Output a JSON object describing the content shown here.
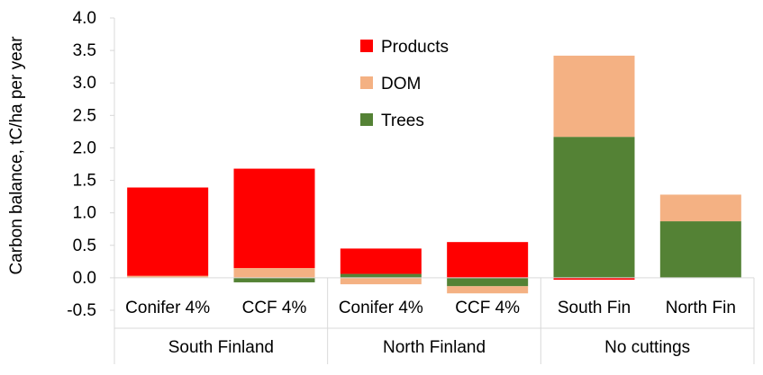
{
  "chart_data": {
    "type": "bar",
    "stacked": true,
    "title": "",
    "xlabel": "",
    "ylabel": "Carbon balance, tC/ha per year",
    "ylim": [
      -0.5,
      4.0
    ],
    "ytick_step": 0.5,
    "grid": false,
    "legend_position": "top-center",
    "categories": [
      "Conifer 4%",
      "CCF 4%",
      "Conifer 4%",
      "CCF 4%",
      "South Fin",
      "North Fin"
    ],
    "groups": [
      {
        "label": "South Finland",
        "start": 0,
        "count": 2
      },
      {
        "label": "North Finland",
        "start": 2,
        "count": 2
      },
      {
        "label": "No cuttings",
        "start": 4,
        "count": 2
      }
    ],
    "series": [
      {
        "name": "Trees",
        "color": "#548235",
        "values": [
          0.0,
          -0.07,
          0.06,
          -0.13,
          2.17,
          0.87
        ]
      },
      {
        "name": "DOM",
        "color": "#F4B183",
        "values": [
          0.03,
          0.15,
          -0.1,
          -0.11,
          1.25,
          0.41
        ]
      },
      {
        "name": "Products",
        "color": "#FF0000",
        "values": [
          1.36,
          1.53,
          0.39,
          0.55,
          -0.03,
          0.0
        ]
      }
    ],
    "legend_order": [
      "Products",
      "DOM",
      "Trees"
    ]
  }
}
